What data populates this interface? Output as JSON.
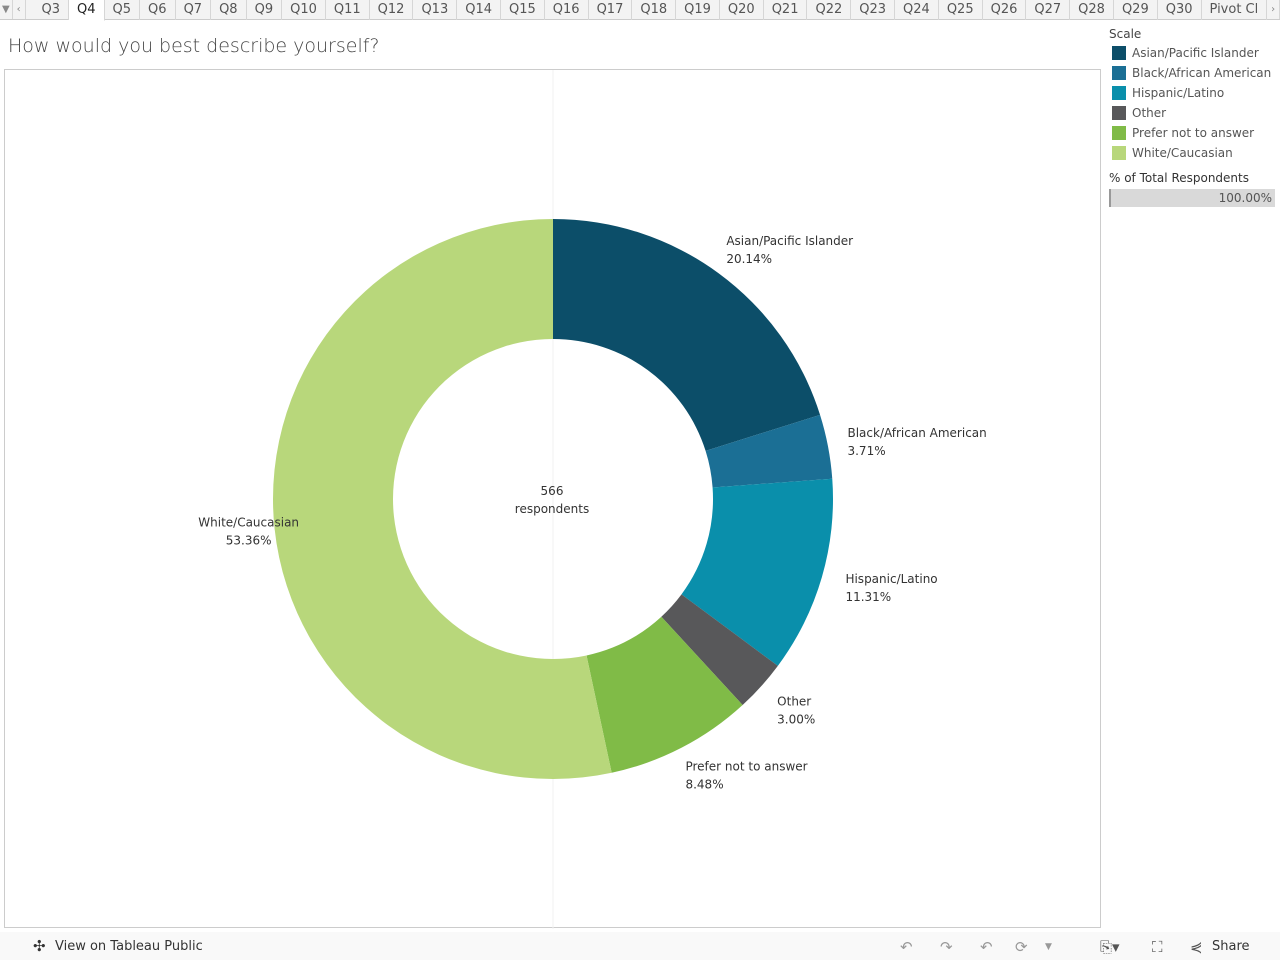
{
  "tabs": {
    "items": [
      "Q3",
      "Q4",
      "Q5",
      "Q6",
      "Q7",
      "Q8",
      "Q9",
      "Q10",
      "Q11",
      "Q12",
      "Q13",
      "Q14",
      "Q15",
      "Q16",
      "Q17",
      "Q18",
      "Q19",
      "Q20",
      "Q21",
      "Q22",
      "Q23",
      "Q24",
      "Q25",
      "Q26",
      "Q27",
      "Q28",
      "Q29",
      "Q30",
      "Pivot Cl"
    ],
    "active": "Q4"
  },
  "title": "How would you best describe yourself?",
  "legend": {
    "title": "Scale",
    "pct_title": "% of Total Respondents",
    "pct_value": "100.00%",
    "pct_fill": 1.0
  },
  "footer": {
    "view_label": "View on Tableau Public",
    "share_label": "Share"
  },
  "chart_data": {
    "type": "pie",
    "donut": true,
    "center_label": [
      "566",
      "respondents"
    ],
    "categories": [
      "Asian/Pacific Islander",
      "Black/African American",
      "Hispanic/Latino",
      "Other",
      "Prefer not to answer",
      "White/Caucasian"
    ],
    "values": [
      20.14,
      3.71,
      11.31,
      3.0,
      8.48,
      53.36
    ],
    "value_labels": [
      "20.14%",
      "3.71%",
      "11.31%",
      "3.00%",
      "8.48%",
      "53.36%"
    ],
    "colors": [
      "#0c4e69",
      "#1b6f95",
      "#0a8fab",
      "#58585a",
      "#80bb47",
      "#b8d77b"
    ]
  }
}
